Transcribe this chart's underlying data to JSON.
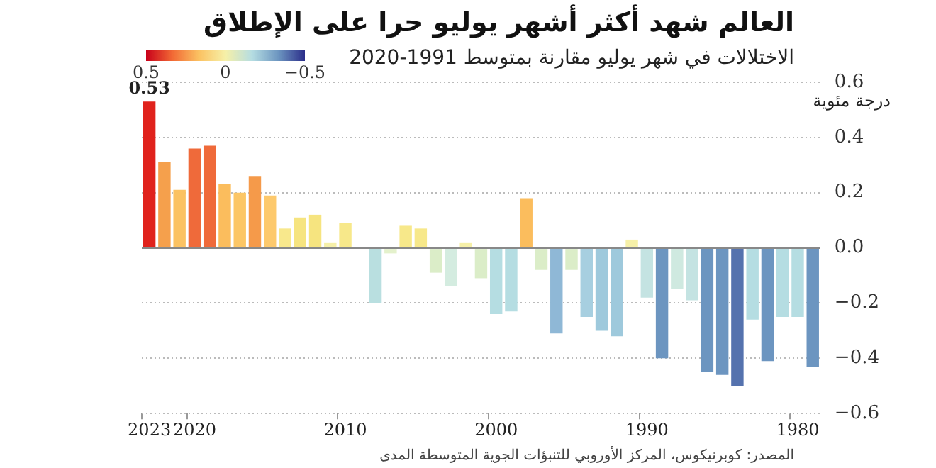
{
  "chart_data": {
    "type": "bar",
    "title": "العالم شهد أكثر أشهر يوليو حرا على الإطلاق",
    "subtitle": "الاختلالات في شهر يوليو مقارنة بمتوسط 1991-2020",
    "ylabel": "درجة مئوية",
    "annotations": [
      "المصدر: كوبرنيكوس، المركز الأوروبي للتنبؤات الجوية المتوسطة المدى"
    ],
    "categories": [
      "2023",
      null,
      null,
      "2020",
      null,
      null,
      null,
      null,
      null,
      null,
      null,
      null,
      null,
      "2010",
      null,
      null,
      null,
      null,
      null,
      null,
      null,
      null,
      null,
      "2000",
      null,
      null,
      null,
      null,
      null,
      null,
      null,
      null,
      null,
      "1990",
      null,
      null,
      null,
      null,
      null,
      null,
      null,
      null,
      null,
      "1980",
      null
    ],
    "values": [
      0.53,
      0.31,
      0.21,
      0.36,
      0.37,
      0.23,
      0.2,
      0.26,
      0.19,
      0.07,
      0.11,
      0.12,
      0.02,
      0.09,
      0,
      -0.2,
      -0.02,
      0.08,
      0.07,
      -0.09,
      -0.14,
      0.02,
      -0.11,
      -0.24,
      -0.23,
      0.18,
      -0.08,
      -0.31,
      -0.08,
      -0.25,
      -0.3,
      -0.32,
      0.03,
      -0.18,
      -0.4,
      -0.15,
      -0.19,
      -0.45,
      -0.46,
      -0.5,
      -0.26,
      -0.41,
      -0.25,
      -0.25,
      -0.43
    ],
    "colors": [
      "#e0221c",
      "#f5a04c",
      "#fbc262",
      "#ef6a3a",
      "#ef6a3a",
      "#fbbd5d",
      "#fcc665",
      "#f59a4a",
      "#fdc96c",
      "#f8e88c",
      "#f6e47f",
      "#f6e47f",
      "#f6f0a8",
      "#f7e88a",
      "#f6f0a8",
      "#b9dfe0",
      "#e4f1cc",
      "#f7e88a",
      "#f7e88a",
      "#dbedc8",
      "#d4ece0",
      "#f6f0a8",
      "#dbedc8",
      "#b5dde2",
      "#b5dde2",
      "#fbbd5d",
      "#dbedc8",
      "#8fb8d6",
      "#dbedc8",
      "#a7cfe0",
      "#9ec9dc",
      "#9ec9dc",
      "#f6f0a8",
      "#c4e3e2",
      "#6c95c0",
      "#cfe9e0",
      "#c4e3e2",
      "#6c95c0",
      "#6c95c0",
      "#5572ae",
      "#b5dde2",
      "#6c95c0",
      "#b5dde2",
      "#b5dde2",
      "#6c95c0"
    ],
    "value_labels": [
      "0.53",
      null,
      null,
      null,
      null,
      null,
      null,
      null,
      null,
      null,
      null,
      null,
      null,
      null,
      null,
      null,
      null,
      null,
      null,
      null,
      null,
      null,
      null,
      null,
      null,
      null,
      null,
      null,
      null,
      null,
      null,
      null,
      null,
      null,
      null,
      null,
      null,
      null,
      null,
      null,
      null,
      null,
      null,
      null,
      null
    ],
    "ylim": [
      -0.6,
      0.6
    ],
    "yticks": [
      {
        "value": -0.6,
        "label": "−0.6"
      },
      {
        "value": -0.4,
        "label": "−0.4"
      },
      {
        "value": -0.2,
        "label": "−0.2"
      },
      {
        "value": 0,
        "label": "0.0"
      },
      {
        "value": 0.2,
        "label": "0.2"
      },
      {
        "value": 0.4,
        "label": "0.4"
      },
      {
        "value": 0.6,
        "label": "0.6"
      }
    ],
    "clim": [
      0.5,
      -0.5
    ],
    "cticks": [
      {
        "value": 0.5,
        "label": "0.5"
      },
      {
        "value": 0,
        "label": "0"
      },
      {
        "value": -0.5,
        "label": "−0.5"
      }
    ],
    "grid": "y",
    "legend": false
  }
}
